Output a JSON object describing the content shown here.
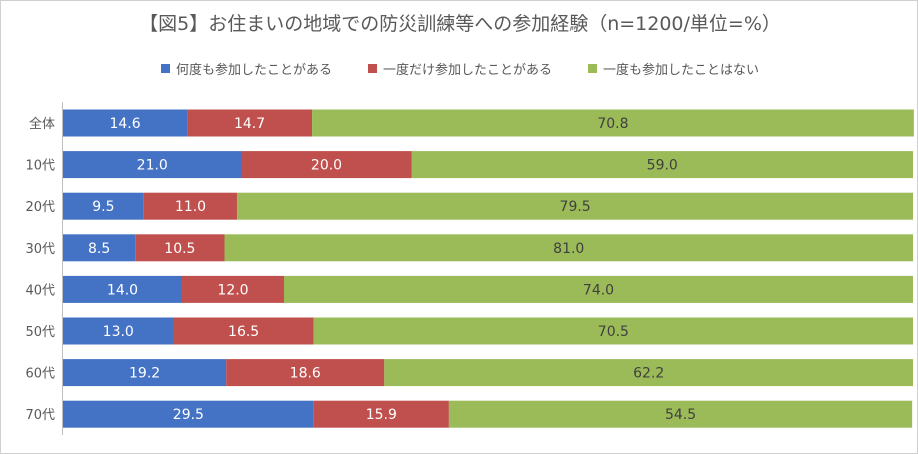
{
  "chart_data": {
    "type": "bar",
    "orientation": "horizontal",
    "stacked": true,
    "title": "【図5】お住まいの地域での防災訓練等への参加経験（n=1200/単位=%）",
    "categories": [
      "全体",
      "10代",
      "20代",
      "30代",
      "40代",
      "50代",
      "60代",
      "70代"
    ],
    "series": [
      {
        "name": "何度も参加したことがある",
        "color": "#4472c4",
        "values": [
          14.6,
          21.0,
          9.5,
          8.5,
          14.0,
          13.0,
          19.2,
          29.5
        ]
      },
      {
        "name": "一度だけ参加したことがある",
        "color": "#c0504d",
        "values": [
          14.7,
          20.0,
          11.0,
          10.5,
          12.0,
          16.5,
          18.6,
          15.9
        ]
      },
      {
        "name": "一度も参加したことはない",
        "color": "#9bbb59",
        "values": [
          70.8,
          59.0,
          79.5,
          81.0,
          74.0,
          70.5,
          62.2,
          54.5
        ]
      }
    ],
    "xlim": [
      0,
      100
    ],
    "legend": "top",
    "grid": false
  }
}
